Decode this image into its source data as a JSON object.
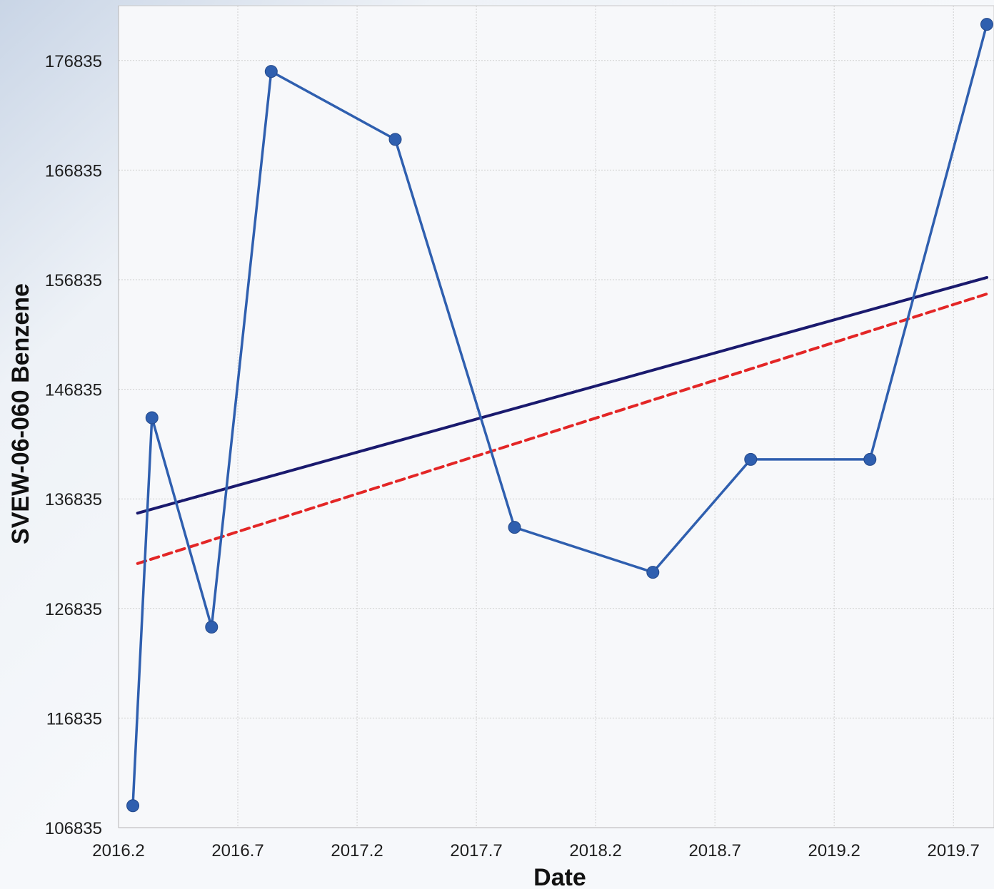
{
  "chart_data": {
    "type": "line",
    "xlabel": "Date",
    "ylabel": "SVEW-06-060 Benzene",
    "xlim": [
      2016.2,
      2019.87
    ],
    "ylim": [
      106835,
      181835
    ],
    "x_ticks": [
      "2016.2",
      "2016.7",
      "2017.2",
      "2017.7",
      "2018.2",
      "2018.7",
      "2019.2",
      "2019.7"
    ],
    "y_ticks": [
      "106835",
      "116835",
      "126835",
      "136835",
      "146835",
      "156835",
      "166835",
      "176835"
    ],
    "grid": true,
    "legend": "none",
    "series": [
      {
        "kind": "data",
        "color": "#2f5faf",
        "marker": "circle",
        "x": [
          2016.26,
          2016.34,
          2016.59,
          2016.84,
          2017.36,
          2017.86,
          2018.44,
          2018.85,
          2019.35,
          2019.84
        ],
        "y": [
          108835,
          144235,
          125135,
          175835,
          169635,
          134235,
          130135,
          140435,
          140435,
          180135
        ]
      },
      {
        "kind": "trend",
        "color": "#1a1a6e",
        "style": "solid",
        "x": [
          2016.28,
          2019.84
        ],
        "y": [
          135535,
          157035
        ]
      },
      {
        "kind": "trend",
        "color": "#e32626",
        "style": "dashed",
        "x": [
          2016.28,
          2019.84
        ],
        "y": [
          130935,
          155535
        ]
      }
    ]
  }
}
